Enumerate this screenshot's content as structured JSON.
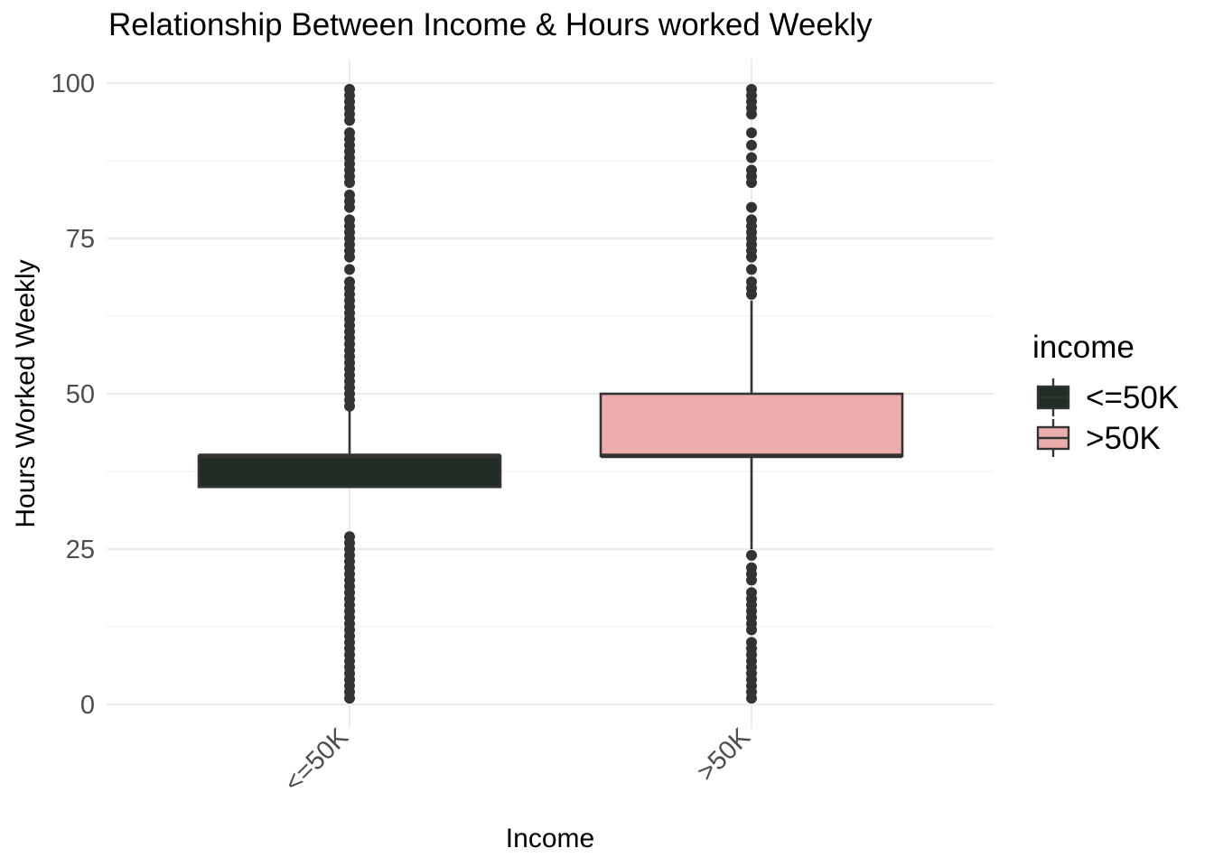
{
  "chart_data": {
    "type": "box",
    "title": "Relationship Between Income & Hours worked Weekly",
    "xlabel": "Income",
    "ylabel": "Hours Worked Weekly",
    "categories": [
      "<=50K",
      ">50K"
    ],
    "ylim": [
      0,
      100
    ],
    "yticks": [
      0,
      25,
      50,
      75,
      100
    ],
    "grid": true,
    "legend": {
      "title": "income",
      "position": "right",
      "entries": [
        "<=50K",
        ">50K"
      ]
    },
    "colors": {
      "<=50K": "#1f2d23",
      ">50K": "#ebadab",
      "outline": "#333333",
      "outlier": "#333333"
    },
    "boxes": [
      {
        "name": "<=50K",
        "whisker_low": 35,
        "q1": 35,
        "median": 40,
        "q3": 40,
        "whisker_high": 48,
        "outliers_low": [
          1,
          2,
          3,
          4,
          5,
          6,
          7,
          8,
          9,
          10,
          11,
          12,
          13,
          14,
          15,
          16,
          17,
          18,
          19,
          20,
          21,
          22,
          23,
          24,
          25,
          26,
          27
        ],
        "outliers_high": [
          48,
          49,
          50,
          51,
          52,
          53,
          54,
          55,
          56,
          57,
          58,
          59,
          60,
          61,
          62,
          63,
          64,
          65,
          66,
          67,
          68,
          70,
          72,
          73,
          74,
          75,
          76,
          77,
          78,
          80,
          81,
          82,
          84,
          85,
          86,
          87,
          88,
          89,
          90,
          91,
          92,
          94,
          95,
          96,
          97,
          98,
          99
        ]
      },
      {
        "name": ">50K",
        "whisker_low": 25,
        "q1": 40,
        "median": 40,
        "q3": 50,
        "whisker_high": 65,
        "outliers_low": [
          1,
          2,
          3,
          4,
          5,
          6,
          7,
          8,
          9,
          10,
          12,
          13,
          14,
          15,
          16,
          17,
          18,
          20,
          21,
          22,
          24
        ],
        "outliers_high": [
          66,
          67,
          68,
          70,
          72,
          73,
          74,
          75,
          76,
          77,
          78,
          80,
          84,
          85,
          86,
          88,
          90,
          92,
          95,
          96,
          97,
          98,
          99
        ]
      }
    ]
  }
}
